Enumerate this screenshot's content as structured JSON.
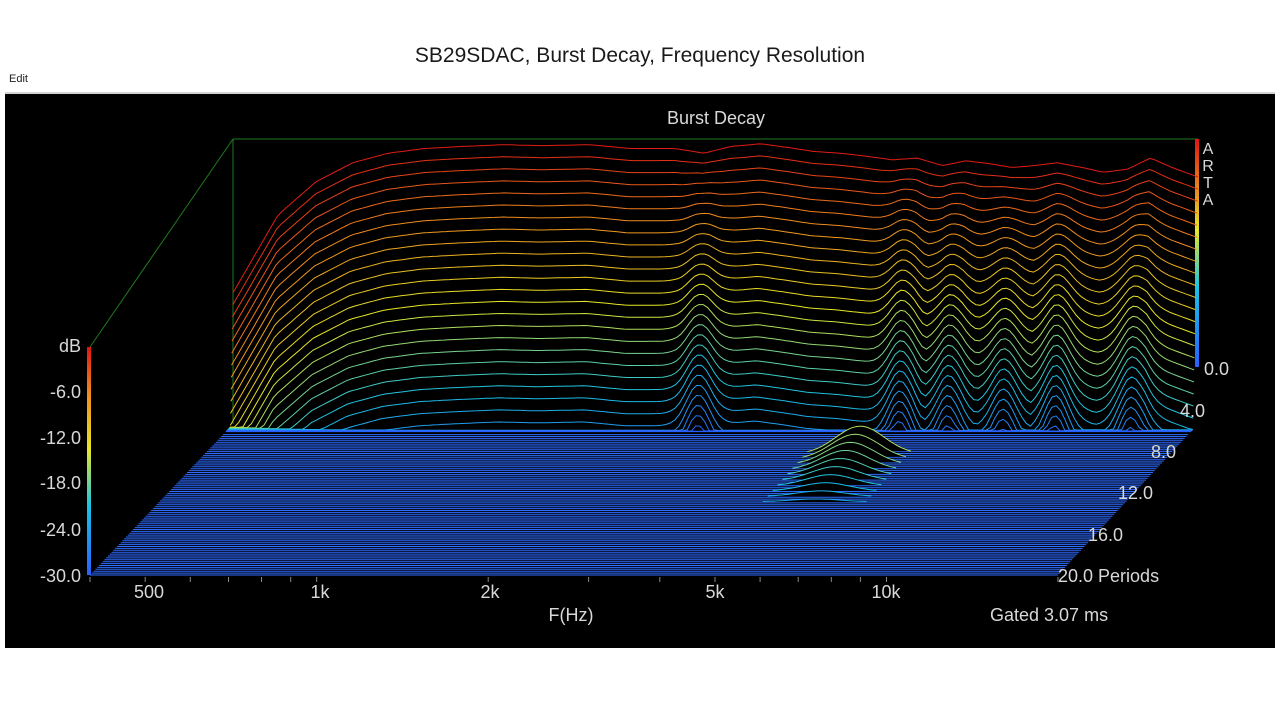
{
  "slide": {
    "title": "SB29SDAC, Burst Decay, Frequency Resolution"
  },
  "toolbar": {
    "edit_label": "Edit"
  },
  "chart_data": {
    "type": "waterfall",
    "title": "Burst Decay",
    "watermark": "ARTA",
    "xlabel": "F(Hz)",
    "x_scale": "log",
    "x_range": [
      400,
      20000
    ],
    "x_ticks": [
      {
        "value": 500,
        "label": "500"
      },
      {
        "value": 1000,
        "label": "1k"
      },
      {
        "value": 2000,
        "label": "2k"
      },
      {
        "value": 5000,
        "label": "5k"
      },
      {
        "value": 10000,
        "label": "10k"
      }
    ],
    "zlabel": "dB",
    "z_range": [
      -30,
      0
    ],
    "z_ticks": [
      "dB",
      "-6.0",
      "-12.0",
      "-18.0",
      "-24.0",
      "-30.0"
    ],
    "y_ticks": [
      "0.0",
      "4.0",
      "8.0",
      "12.0",
      "16.0",
      "20.0 Periods"
    ],
    "y_range": [
      0,
      20
    ],
    "y_unit": "Periods",
    "gating_note": "Gated 3.07 ms",
    "slice_count": 30,
    "floor_line_count": 75,
    "colormap": [
      "#2a5fff",
      "#19c4e6",
      "#e8e826",
      "#f08a1e",
      "#e01414"
    ],
    "response_db_at_start": {
      "freq_hz": [
        420,
        480,
        560,
        650,
        750,
        870,
        1000,
        1200,
        1400,
        1700,
        2000,
        2400,
        2700,
        3000,
        3400,
        3800,
        4200,
        4700,
        5200,
        5800,
        6400,
        7100,
        7800,
        8600,
        9400,
        10300,
        11300,
        12500,
        13600,
        15000,
        16500,
        18000,
        20000
      ],
      "level_db": [
        -14,
        -8,
        -4.5,
        -2.5,
        -1.5,
        -1,
        -0.8,
        -0.6,
        -0.7,
        -0.6,
        -1,
        -1,
        -1.5,
        -0.8,
        -0.5,
        -0.9,
        -1.3,
        -1.5,
        -1.8,
        -2.2,
        -2.0,
        -2.8,
        -2.3,
        -2.6,
        -3.0,
        -2.8,
        -2.5,
        -3.0,
        -3.5,
        -3.2,
        -2.0,
        -3.0,
        -4.0
      ]
    }
  }
}
